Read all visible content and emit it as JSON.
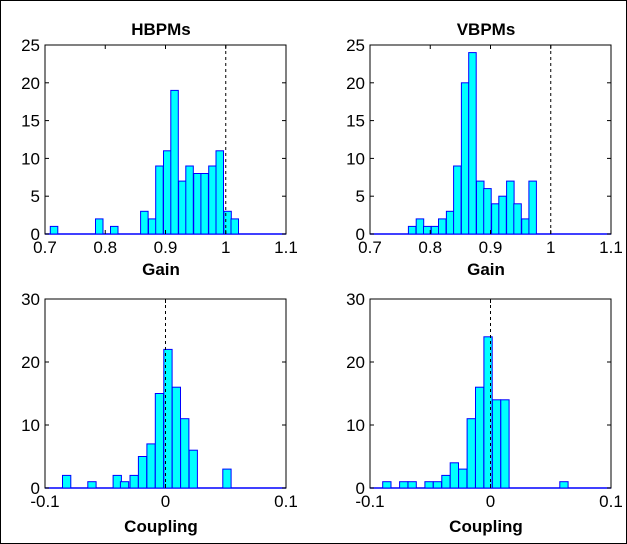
{
  "colors": {
    "bar_fill": "#00ffff",
    "bar_stroke": "#0000ff",
    "baseline": "#0000ff",
    "axes": "#000000",
    "ref_line": "#000000"
  },
  "chart_data": [
    {
      "type": "bar",
      "title": "HBPMs",
      "xlabel": "Gain",
      "ylabel": "",
      "xlim": [
        0.7,
        1.1
      ],
      "ylim": [
        0,
        25
      ],
      "xticks": [
        "0.7",
        "0.8",
        "0.9",
        "1",
        "1.1"
      ],
      "yticks": [
        "0",
        "5",
        "10",
        "15",
        "20",
        "25"
      ],
      "bin_width": 0.0125,
      "reference_line_x": 1,
      "bin_centers": [
        0.715,
        0.79,
        0.815,
        0.865,
        0.878,
        0.89,
        0.903,
        0.915,
        0.928,
        0.94,
        0.953,
        0.965,
        0.978,
        0.99,
        1.003,
        1.015,
        1.028
      ],
      "values": [
        1,
        2,
        1,
        3,
        2,
        9,
        11,
        19,
        7,
        9,
        8,
        8,
        9,
        11,
        3,
        2,
        0
      ]
    },
    {
      "type": "bar",
      "title": "VBPMs",
      "xlabel": "Gain",
      "ylabel": "",
      "xlim": [
        0.7,
        1.1
      ],
      "ylim": [
        0,
        25
      ],
      "xticks": [
        "0.7",
        "0.8",
        "0.9",
        "1",
        "1.1"
      ],
      "yticks": [
        "0",
        "5",
        "10",
        "15",
        "20",
        "25"
      ],
      "bin_width": 0.0125,
      "reference_line_x": 1,
      "bin_centers": [
        0.77,
        0.783,
        0.795,
        0.808,
        0.82,
        0.833,
        0.845,
        0.858,
        0.87,
        0.883,
        0.895,
        0.908,
        0.92,
        0.933,
        0.945,
        0.958,
        0.97,
        0.983,
        0.995
      ],
      "values": [
        1,
        2,
        1,
        1,
        2,
        3,
        9,
        20,
        24,
        7,
        6,
        4,
        5,
        7,
        4,
        2,
        7,
        0,
        0
      ]
    },
    {
      "type": "bar",
      "title": "",
      "xlabel": "Coupling",
      "ylabel": "",
      "xlim": [
        -0.1,
        0.1
      ],
      "ylim": [
        0,
        30
      ],
      "xticks": [
        "-0.1",
        "0",
        "0.1"
      ],
      "yticks": [
        "0",
        "10",
        "20",
        "30"
      ],
      "bin_width": 0.0069,
      "reference_line_x": 0,
      "bin_centers": [
        -0.082,
        -0.061,
        -0.04,
        -0.034,
        -0.026,
        -0.019,
        -0.012,
        -0.005,
        0.002,
        0.009,
        0.016,
        0.023,
        0.051
      ],
      "values": [
        2,
        1,
        2,
        1,
        2,
        5,
        7,
        15,
        22,
        16,
        11,
        6,
        3
      ]
    },
    {
      "type": "bar",
      "title": "",
      "xlabel": "Coupling",
      "ylabel": "",
      "xlim": [
        -0.1,
        0.1
      ],
      "ylim": [
        0,
        30
      ],
      "xticks": [
        "-0.1",
        "0",
        "0.1"
      ],
      "yticks": [
        "0",
        "10",
        "20",
        "30"
      ],
      "bin_width": 0.0069,
      "reference_line_x": 0,
      "bin_centers": [
        -0.086,
        -0.072,
        -0.065,
        -0.051,
        -0.044,
        -0.037,
        -0.03,
        -0.023,
        -0.016,
        -0.009,
        -0.002,
        0.005,
        0.012,
        0.019,
        0.061
      ],
      "values": [
        1,
        1,
        1,
        1,
        1,
        2,
        4,
        3,
        11,
        16,
        24,
        14,
        14,
        0,
        1
      ]
    }
  ]
}
